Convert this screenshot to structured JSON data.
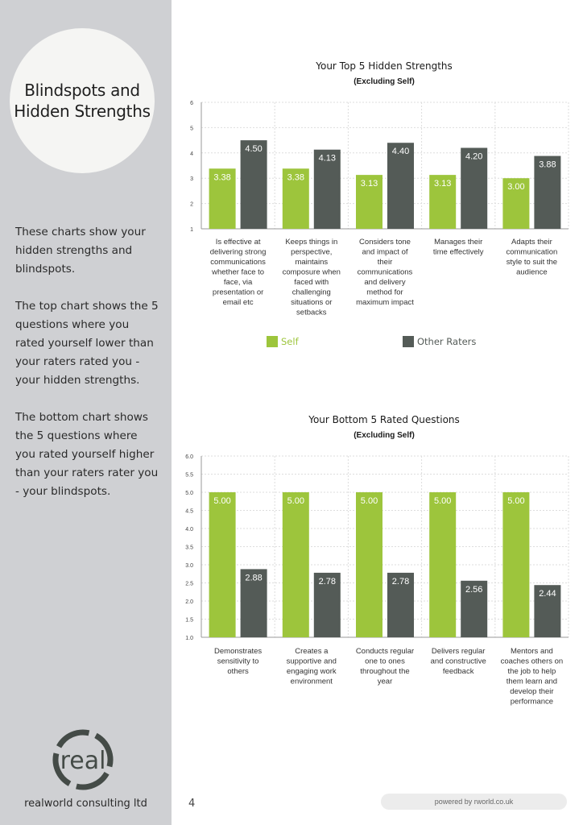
{
  "sidebar": {
    "circle_title_line1": "Blindspots and",
    "circle_title_line2": "Hidden Strengths",
    "paragraphs": [
      "These charts show your hidden strengths and blindspots.",
      "The top chart shows the 5 questions where you rated yourself lower than your raters rated you - your hidden strengths.",
      "The bottom chart shows the 5 questions where you rated yourself higher than your raters rater you - your blindspots."
    ],
    "logo_text": "real",
    "company": "realworld consulting ltd"
  },
  "footer": {
    "page_number": "4",
    "powered_by": "powered by rworld.co.uk"
  },
  "colors": {
    "self": "#9dc53c",
    "other": "#545b57",
    "sidebar": "#cfd0d3"
  },
  "legend": {
    "self": "Self",
    "other": "Other Raters"
  },
  "chart_data": [
    {
      "type": "bar",
      "title": "Your Top 5 Hidden Strengths",
      "subtitle": "(Excluding Self)",
      "categories": [
        "Is effective at delivering strong communications whether face to face, via presentation or email etc",
        "Keeps things in perspective, maintains composure when faced with challenging situations or setbacks",
        "Considers tone and impact of their communications and delivery method for maximum impact",
        "Manages their time effectively",
        "Adapts their communication style to suit the audience"
      ],
      "series": [
        {
          "name": "Self",
          "values": [
            3.38,
            3.38,
            3.13,
            3.13,
            3.0
          ]
        },
        {
          "name": "Other Raters",
          "values": [
            4.5,
            4.13,
            4.4,
            4.2,
            3.88
          ]
        }
      ],
      "ylim": [
        1,
        6
      ],
      "yticks": [
        "1",
        "2",
        "3",
        "4",
        "5",
        "6"
      ],
      "ytick_values": [
        1,
        2,
        3,
        4,
        5,
        6
      ],
      "grid": true,
      "legend": "bottom"
    },
    {
      "type": "bar",
      "title": "Your Bottom 5 Rated Questions",
      "subtitle": "(Excluding Self)",
      "categories": [
        "Demonstrates sensitivity to others",
        "Creates a supportive and engaging work environment",
        "Conducts regular one to ones throughout the year",
        "Delivers regular and constructive feedback",
        "Mentors and coaches others on the job to help them learn and develop their performance"
      ],
      "series": [
        {
          "name": "Self",
          "values": [
            5.0,
            5.0,
            5.0,
            5.0,
            5.0
          ]
        },
        {
          "name": "Other Raters",
          "values": [
            2.88,
            2.78,
            2.78,
            2.56,
            2.44
          ]
        }
      ],
      "ylim": [
        1,
        6
      ],
      "yticks": [
        "1.0",
        "1.5",
        "2.0",
        "2.5",
        "3.0",
        "3.5",
        "4.0",
        "4.5",
        "5.0",
        "5.5",
        "6.0"
      ],
      "ytick_values": [
        1.0,
        1.5,
        2.0,
        2.5,
        3.0,
        3.5,
        4.0,
        4.5,
        5.0,
        5.5,
        6.0
      ],
      "grid": true,
      "legend": "none"
    }
  ]
}
